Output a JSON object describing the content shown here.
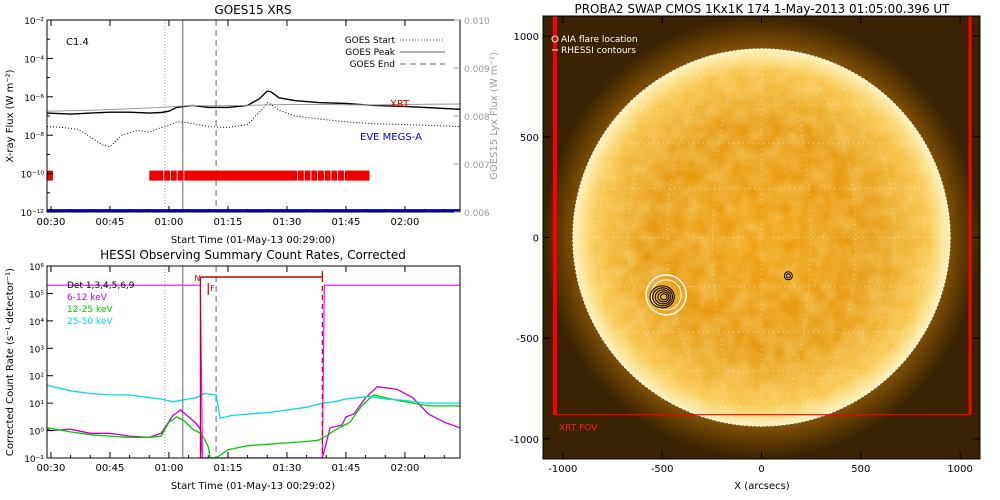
{
  "chart_data": [
    {
      "type": "line",
      "title": "GOES15 XRS",
      "xlabel": "Start Time (01-May-13 00:29:00)",
      "ylabel": "X-ray Flux (W m⁻²)",
      "ylabel_right": "GOES15 Lyx Flux (W m⁻²)",
      "class_label": "C1.4",
      "x_ticks": [
        "00:30",
        "00:45",
        "01:00",
        "01:15",
        "01:30",
        "01:45",
        "02:00"
      ],
      "x_tick_minutes": [
        30,
        45,
        60,
        75,
        90,
        105,
        120
      ],
      "xlim_minutes": [
        29,
        134
      ],
      "y_scale": "log",
      "ylim_exp": [
        -12,
        -2
      ],
      "y_ticks": [
        "10⁻²",
        "10⁻⁴",
        "10⁻⁶",
        "10⁻⁸",
        "10⁻¹⁰",
        "10⁻¹²"
      ],
      "y_tick_exp": [
        -2,
        -4,
        -6,
        -8,
        -10,
        -12
      ],
      "y2_ticks": [
        "0.010",
        "0.009",
        "0.008",
        "0.007",
        "0.006"
      ],
      "y2_tick_values": [
        0.01,
        0.009,
        0.008,
        0.007,
        0.006
      ],
      "y2lim": [
        0.006,
        0.01
      ],
      "legend": [
        {
          "name": "GOES Start",
          "style": "dotted",
          "color": "#888888"
        },
        {
          "name": "GOES Peak",
          "style": "solid",
          "color": "#999999"
        },
        {
          "name": "GOES End",
          "style": "dashed",
          "color": "#999999"
        }
      ],
      "markers_minutes": {
        "start": 59,
        "peak": 63.5,
        "end": 72
      },
      "series": [
        {
          "key": "long",
          "color": "#000000",
          "style": "solid",
          "x": [
            29,
            35,
            40,
            45,
            50,
            55,
            58,
            60,
            62,
            64,
            66,
            70,
            75,
            80,
            83,
            85,
            86,
            88,
            92,
            98,
            105,
            112,
            120,
            125,
            134
          ],
          "y": [
            -6.85,
            -6.9,
            -6.85,
            -6.8,
            -6.8,
            -6.85,
            -6.82,
            -6.75,
            -6.55,
            -6.5,
            -6.45,
            -6.55,
            -6.55,
            -6.45,
            -6.1,
            -5.7,
            -5.75,
            -6.05,
            -6.2,
            -6.3,
            -6.35,
            -6.45,
            -6.5,
            -6.55,
            -6.65
          ]
        },
        {
          "key": "lyx",
          "color": "#999999",
          "style": "solid",
          "x": [
            29,
            40,
            50,
            58,
            62,
            66,
            70,
            80,
            90,
            100,
            110,
            120,
            134
          ],
          "y": [
            0.0081,
            0.00812,
            0.00815,
            0.00818,
            0.0082,
            0.00822,
            0.00821,
            0.00822,
            0.00824,
            0.00824,
            0.00823,
            0.00824,
            0.00825
          ]
        },
        {
          "key": "short",
          "color": "#000000",
          "style": "dotted",
          "x": [
            29,
            33,
            37,
            40,
            43,
            45,
            48,
            52,
            55,
            58,
            60,
            62,
            65,
            70,
            75,
            80,
            82,
            84,
            85,
            86,
            88,
            92,
            98,
            105,
            112,
            120,
            128,
            134
          ],
          "y": [
            -7.55,
            -7.6,
            -7.7,
            -8.1,
            -8.5,
            -8.6,
            -8.0,
            -7.75,
            -7.85,
            -7.6,
            -7.5,
            -7.3,
            -7.35,
            -7.55,
            -7.6,
            -7.45,
            -7.0,
            -6.6,
            -6.3,
            -6.4,
            -6.7,
            -7.0,
            -7.15,
            -7.3,
            -7.4,
            -7.45,
            -7.5,
            -7.55
          ]
        }
      ],
      "instrument_labels": [
        {
          "name": "XRT",
          "color": "#dd0000"
        },
        {
          "name": "EVE MEGS-A",
          "color": "#0000cc"
        }
      ],
      "xrt_coverage_minutes": [
        [
          29,
          30.5
        ],
        [
          55,
          111
        ]
      ],
      "eve_coverage_minutes": [
        [
          29,
          134
        ]
      ]
    },
    {
      "type": "line",
      "title": "HESSI Observing Summary Count Rates, Corrected",
      "xlabel": "Start Time (01-May-13 00:29:02)",
      "ylabel": "Corrected Count Rate (s⁻¹ detector⁻¹)",
      "x_ticks": [
        "00:30",
        "00:45",
        "01:00",
        "01:15",
        "01:30",
        "01:45",
        "02:00"
      ],
      "x_tick_minutes": [
        30,
        45,
        60,
        75,
        90,
        105,
        120
      ],
      "xlim_minutes": [
        29,
        134
      ],
      "y_scale": "log",
      "ylim_exp": [
        -1,
        6
      ],
      "y_ticks": [
        "10⁶",
        "10⁵",
        "10⁴",
        "10³",
        "10²",
        "10¹",
        "10⁰",
        "10⁻¹"
      ],
      "y_tick_exp": [
        6,
        5,
        4,
        3,
        2,
        1,
        0,
        -1
      ],
      "legend_header": "Det 1,3,4,5,6,9",
      "flag_labels": {
        "night": "N",
        "flare": "F"
      },
      "night_interval_minutes": [
        68,
        99
      ],
      "flare_interval_minutes": [
        70,
        99
      ],
      "markers_minutes": {
        "start": 59,
        "peak": 63.5,
        "end": 72
      },
      "series": [
        {
          "name": "6-12 keV",
          "color": "#cc00cc",
          "x": [
            29,
            30,
            35,
            40,
            45,
            50,
            55,
            58,
            61,
            63,
            65,
            67,
            68,
            68.5,
            99,
            101,
            104,
            105,
            107,
            110,
            113,
            118,
            122,
            126,
            130,
            134
          ],
          "y": [
            0.05,
            0,
            0.05,
            -0.1,
            -0.1,
            -0.2,
            -0.25,
            -0.1,
            0.55,
            0.75,
            0.5,
            0.25,
            0.05,
            -1,
            -1,
            0.1,
            0.2,
            0.5,
            0.6,
            1.2,
            1.6,
            1.5,
            1.2,
            0.6,
            0.3,
            0.1
          ]
        },
        {
          "name": "12-25 keV",
          "color": "#00cc00",
          "x": [
            29,
            35,
            40,
            45,
            50,
            55,
            58,
            60,
            62,
            64,
            66,
            68,
            69,
            70,
            70.5,
            72,
            75,
            80,
            85,
            90,
            95,
            98,
            100,
            102,
            104,
            106,
            109,
            112,
            115,
            118,
            122,
            126,
            130,
            134
          ],
          "y": [
            0.1,
            -0.05,
            -0.15,
            -0.2,
            -0.25,
            -0.25,
            -0.2,
            0.3,
            0.5,
            0.35,
            0.05,
            -0.1,
            -0.3,
            -0.6,
            -1,
            -1,
            -0.7,
            -0.55,
            -0.5,
            -0.45,
            -0.4,
            -0.35,
            -0.2,
            0.0,
            0.15,
            0.3,
            0.9,
            1.3,
            1.2,
            1.1,
            1.0,
            0.9,
            0.9,
            0.9
          ]
        },
        {
          "name": "25-50 keV",
          "color": "#00dddd",
          "x": [
            29,
            35,
            40,
            45,
            50,
            55,
            58,
            61,
            63,
            65,
            67,
            69,
            72,
            73,
            76,
            80,
            85,
            90,
            95,
            99,
            102,
            105,
            108,
            111,
            115,
            120,
            125,
            130,
            134
          ],
          "y": [
            1.65,
            1.45,
            1.35,
            1.3,
            1.3,
            1.2,
            1.15,
            1.05,
            1.1,
            1.15,
            1.2,
            1.35,
            1.3,
            0.45,
            0.55,
            0.6,
            0.65,
            0.75,
            0.85,
            1.0,
            1.05,
            1.15,
            1.2,
            1.25,
            1.15,
            1.1,
            1.0,
            1.0,
            1.0
          ]
        },
        {
          "name": "Det 1,3,4,5,6,9",
          "color": "#ff00ff",
          "x": [
            29,
            68,
            68.5,
            99,
            99.5,
            134
          ],
          "y": [
            5.3,
            5.3,
            -1,
            -1,
            5.3,
            5.3
          ]
        }
      ]
    },
    {
      "type": "scatter",
      "title": "PROBA2 SWAP CMOS 1Kx1K 174   1-May-2013 01:05:00.396 UT",
      "xlabel": "X (arcsecs)",
      "ylabel": "",
      "x_ticks": [
        "-1000",
        "-500",
        "0",
        "500",
        "1000"
      ],
      "x_tick_values": [
        -1000,
        -500,
        0,
        500,
        1000
      ],
      "y_ticks": [
        "1000",
        "500",
        "0",
        "-500",
        "-1000"
      ],
      "y_tick_values": [
        1000,
        500,
        0,
        -500,
        -1000
      ],
      "xlim": [
        -1100,
        1100
      ],
      "ylim": [
        -1100,
        1100
      ],
      "solar_radius_arcsec": 950,
      "legend": [
        {
          "name": "AIA flare location",
          "marker": "circle"
        },
        {
          "name": "RHESSI contours",
          "marker": "contour"
        }
      ],
      "aia_flare_location": {
        "x": -480,
        "y": -285
      },
      "rhessi_contours_center": {
        "x": -500,
        "y": -295
      },
      "small_contour_center": {
        "x": 135,
        "y": -190
      },
      "xrt_fov_label": "XRT FOV",
      "xrt_fov": {
        "x0": -1040,
        "x1": 1050,
        "y0": -880,
        "y1": 1100
      }
    }
  ]
}
